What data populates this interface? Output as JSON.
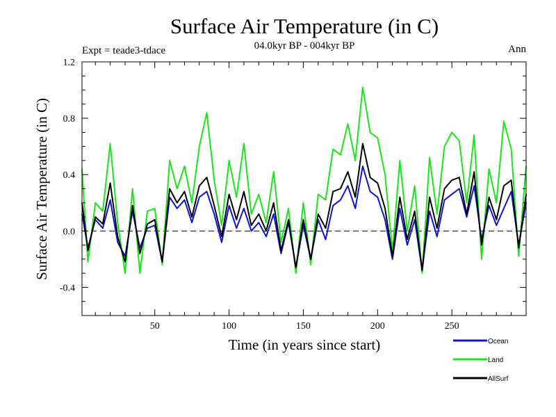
{
  "chart_data": {
    "type": "line",
    "title": "Surface Air Temperature (in C)",
    "subtitle": "04.0kyr BP - 004kyr BP",
    "experiment_label": "Expt = teade3-tdace",
    "season_label": "Ann",
    "xlabel": "Time (in years since start)",
    "ylabel": "Surface Air Temperature (in C)",
    "xlim": [
      1,
      300
    ],
    "ylim": [
      -0.6,
      1.2
    ],
    "xticks": [
      50,
      100,
      150,
      200,
      250
    ],
    "yticks": [
      -0.4,
      0.0,
      0.4,
      0.8,
      1.2
    ],
    "ytick_labels": [
      "-0.4",
      "0.0",
      "0.4",
      "0.8",
      "1.2"
    ],
    "reference_line": 0.0,
    "x": [
      1,
      5,
      10,
      15,
      20,
      25,
      30,
      35,
      40,
      45,
      50,
      55,
      60,
      65,
      70,
      75,
      80,
      85,
      90,
      95,
      100,
      105,
      110,
      115,
      120,
      125,
      130,
      135,
      140,
      145,
      150,
      155,
      160,
      165,
      170,
      175,
      180,
      185,
      190,
      195,
      200,
      205,
      210,
      215,
      220,
      225,
      230,
      235,
      240,
      245,
      250,
      255,
      260,
      265,
      270,
      275,
      280,
      285,
      290,
      295,
      300
    ],
    "series": [
      {
        "name": "Ocean",
        "color": "#0a14d6",
        "values": [
          0.12,
          -0.12,
          0.08,
          0.02,
          0.22,
          -0.08,
          -0.18,
          0.14,
          -0.12,
          0.02,
          0.04,
          -0.22,
          0.24,
          0.16,
          0.22,
          0.06,
          0.24,
          0.28,
          0.12,
          -0.08,
          0.18,
          0.02,
          0.16,
          0.0,
          0.06,
          -0.04,
          0.12,
          -0.16,
          0.06,
          -0.26,
          0.04,
          -0.2,
          0.08,
          -0.06,
          0.18,
          0.22,
          0.32,
          0.16,
          0.46,
          0.28,
          0.24,
          0.08,
          -0.2,
          0.16,
          -0.1,
          0.08,
          -0.28,
          0.14,
          -0.04,
          0.22,
          0.26,
          0.3,
          0.1,
          0.32,
          -0.06,
          0.18,
          0.04,
          0.16,
          0.28,
          -0.1,
          0.2
        ]
      },
      {
        "name": "Land",
        "color": "#19e619",
        "values": [
          0.44,
          -0.22,
          0.2,
          0.14,
          0.62,
          0.06,
          -0.3,
          0.3,
          -0.3,
          0.14,
          0.16,
          -0.24,
          0.5,
          0.3,
          0.46,
          0.2,
          0.6,
          0.84,
          0.36,
          0.04,
          0.5,
          0.24,
          0.62,
          0.12,
          0.26,
          0.06,
          0.42,
          -0.08,
          0.16,
          -0.3,
          0.2,
          -0.24,
          0.26,
          0.22,
          0.58,
          0.54,
          0.76,
          0.5,
          1.02,
          0.7,
          0.66,
          0.4,
          -0.14,
          0.5,
          0.0,
          0.32,
          -0.3,
          0.52,
          0.12,
          0.6,
          0.7,
          0.64,
          0.2,
          0.68,
          -0.2,
          0.44,
          0.2,
          0.78,
          0.58,
          -0.18,
          0.46
        ]
      },
      {
        "name": "AllSurf",
        "color": "#000000",
        "values": [
          0.2,
          -0.14,
          0.1,
          0.05,
          0.34,
          -0.04,
          -0.22,
          0.18,
          -0.16,
          0.05,
          0.08,
          -0.22,
          0.3,
          0.2,
          0.28,
          0.1,
          0.32,
          0.38,
          0.18,
          -0.04,
          0.26,
          0.08,
          0.28,
          0.04,
          0.12,
          0.0,
          0.2,
          -0.14,
          0.08,
          -0.26,
          0.08,
          -0.2,
          0.12,
          0.02,
          0.28,
          0.3,
          0.42,
          0.24,
          0.62,
          0.38,
          0.34,
          0.16,
          -0.18,
          0.24,
          -0.06,
          0.14,
          -0.28,
          0.24,
          0.02,
          0.3,
          0.36,
          0.38,
          0.12,
          0.42,
          -0.1,
          0.24,
          0.08,
          0.32,
          0.36,
          -0.12,
          0.26
        ]
      }
    ],
    "legend_position": "bottom-right"
  }
}
